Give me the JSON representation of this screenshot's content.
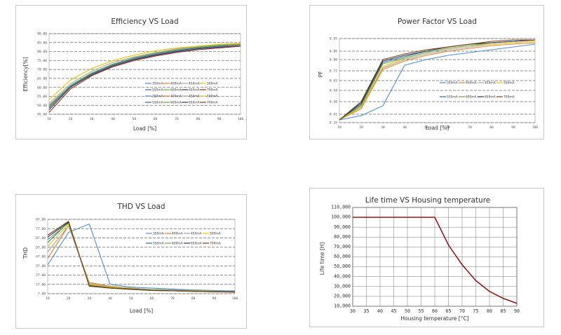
{
  "chart_data": [
    {
      "type": "line",
      "title": "Efficiency VS Load",
      "xlabel": "Load [%]",
      "ylabel": "Efficiency[%]",
      "xlim": [
        10,
        100
      ],
      "ylim": [
        45,
        90
      ],
      "x_ticks": [
        "10",
        "20",
        "30",
        "40",
        "50",
        "60",
        "70",
        "80",
        "90",
        "100"
      ],
      "y_ticks": [
        "45.00",
        "50.00",
        "55.00",
        "60.00",
        "65.00",
        "70.00",
        "75.00",
        "80.00",
        "85.00",
        "90.00"
      ],
      "grid": "dashed-horizontal",
      "x": [
        10,
        20,
        30,
        40,
        50,
        60,
        70,
        80,
        90,
        100
      ],
      "series": [
        {
          "name": "350mA",
          "color": "#4f8fd1",
          "values": [
            50,
            61,
            68,
            73,
            76.5,
            79,
            81,
            82.5,
            83.5,
            84
          ]
        },
        {
          "name": "400mA",
          "color": "#ef7d22",
          "values": [
            49.5,
            61,
            68,
            73,
            76.5,
            79,
            81,
            82.5,
            83.5,
            84
          ]
        },
        {
          "name": "450mA",
          "color": "#a5a5a5",
          "values": [
            51,
            62,
            69,
            74,
            77,
            79.5,
            81.5,
            83,
            84,
            84.5
          ]
        },
        {
          "name": "500mA",
          "color": "#f2c200",
          "values": [
            53,
            64,
            70.5,
            75,
            78,
            80.5,
            82,
            83,
            84,
            84.5
          ]
        },
        {
          "name": "550mA",
          "color": "#2e6ca7",
          "values": [
            48.5,
            60.5,
            67.5,
            72.5,
            76,
            78.5,
            80.5,
            82,
            83,
            83.5
          ]
        },
        {
          "name": "600mA",
          "color": "#6aaa3a",
          "values": [
            49,
            61,
            68,
            73,
            76.5,
            79,
            81,
            82.5,
            83.5,
            84
          ]
        },
        {
          "name": "650mA",
          "color": "#1f3864",
          "values": [
            47.5,
            60,
            67,
            72,
            75.5,
            78,
            80,
            81.5,
            82.5,
            83
          ]
        },
        {
          "name": "700mA",
          "color": "#a62a1a",
          "values": [
            46,
            59,
            66.5,
            71.5,
            75,
            77.5,
            79.5,
            81,
            82,
            83
          ]
        }
      ],
      "legend_rows": [
        [
          "350mA",
          "400mA",
          "450mA",
          "500mA"
        ],
        [
          "550mA",
          "600mA",
          "650mA",
          "700mA"
        ],
        [
          "350mA",
          "400mA",
          "450mA",
          "500mA"
        ],
        [
          "550mA",
          "600mA",
          "650mA",
          "700mA"
        ]
      ]
    },
    {
      "type": "line",
      "title": "Power Factor VS Load",
      "xlabel": "Load [%]",
      "ylabel": "PF",
      "xlim": [
        10,
        100
      ],
      "ylim": [
        0.35,
        0.95
      ],
      "x_ticks": [
        "10",
        "20",
        "30",
        "40",
        "50",
        "60",
        "70",
        "80",
        "90",
        "100"
      ],
      "y_ticks": [
        "0.35",
        "0.41",
        "0.50",
        "0.58",
        "0.65",
        "0.72",
        "0.80",
        "0.86",
        "0.95"
      ],
      "grid": "dashed-horizontal",
      "x": [
        10,
        20,
        30,
        40,
        50,
        60,
        70,
        80,
        90,
        100
      ],
      "series": [
        {
          "name": "350mA",
          "color": "#4f8fd1",
          "values": [
            0.37,
            0.4,
            0.47,
            0.76,
            0.8,
            0.83,
            0.85,
            0.87,
            0.89,
            0.91
          ]
        },
        {
          "name": "400mA",
          "color": "#ef7d22",
          "values": [
            0.37,
            0.45,
            0.73,
            0.79,
            0.83,
            0.86,
            0.88,
            0.9,
            0.91,
            0.92
          ]
        },
        {
          "name": "450mA",
          "color": "#a5a5a5",
          "values": [
            0.37,
            0.46,
            0.74,
            0.8,
            0.84,
            0.87,
            0.89,
            0.91,
            0.92,
            0.93
          ]
        },
        {
          "name": "500mA",
          "color": "#f2c200",
          "values": [
            0.37,
            0.46,
            0.75,
            0.81,
            0.85,
            0.88,
            0.9,
            0.91,
            0.92,
            0.93
          ]
        },
        {
          "name": "550mA",
          "color": "#2e6ca7",
          "values": [
            0.37,
            0.48,
            0.78,
            0.82,
            0.86,
            0.89,
            0.91,
            0.92,
            0.93,
            0.94
          ]
        },
        {
          "name": "600mA",
          "color": "#6aaa3a",
          "values": [
            0.37,
            0.47,
            0.77,
            0.81,
            0.85,
            0.88,
            0.9,
            0.92,
            0.93,
            0.94
          ]
        },
        {
          "name": "650mA",
          "color": "#1f3864",
          "values": [
            0.37,
            0.49,
            0.79,
            0.83,
            0.86,
            0.89,
            0.91,
            0.92,
            0.93,
            0.94
          ]
        },
        {
          "name": "700mA",
          "color": "#843c0c",
          "values": [
            0.37,
            0.5,
            0.8,
            0.84,
            0.87,
            0.89,
            0.91,
            0.93,
            0.94,
            0.94
          ]
        }
      ],
      "legend_rows": [
        [
          "350mA",
          "400mA",
          "450mA",
          "500mA"
        ],
        [
          "550mA",
          "600mA",
          "650mA",
          "700mA"
        ]
      ]
    },
    {
      "type": "line",
      "title": "THD VS Load",
      "xlabel": "Load [%]",
      "ylabel": "THD",
      "xlim": [
        10,
        100
      ],
      "ylim": [
        7,
        87
      ],
      "x_ticks": [
        "10",
        "20",
        "30",
        "40",
        "50",
        "60",
        "70",
        "80",
        "90",
        "100"
      ],
      "y_ticks": [
        "7.00",
        "17.00",
        "27.00",
        "37.00",
        "47.00",
        "57.00",
        "67.00",
        "77.00",
        "87.00"
      ],
      "grid": "dashed-horizontal",
      "x": [
        10,
        20,
        30,
        40,
        50,
        60,
        70,
        80,
        90,
        100
      ],
      "series": [
        {
          "name": "350mA",
          "color": "#4f8fd1",
          "values": [
            38,
            73,
            82,
            17,
            14,
            13,
            12,
            11,
            10.5,
            10
          ]
        },
        {
          "name": "400mA",
          "color": "#ef7d22",
          "values": [
            45,
            80,
            19,
            15,
            13,
            11.5,
            11,
            10.5,
            10,
            9.5
          ]
        },
        {
          "name": "450mA",
          "color": "#a5a5a5",
          "values": [
            52,
            80,
            18,
            14.5,
            13,
            11.5,
            11,
            10.5,
            10,
            9.5
          ]
        },
        {
          "name": "500mA",
          "color": "#f2c200",
          "values": [
            58,
            82,
            17,
            14,
            12.5,
            11,
            10.5,
            10,
            9.5,
            9
          ]
        },
        {
          "name": "550mA",
          "color": "#2e6ca7",
          "values": [
            62,
            84,
            16,
            13.5,
            12,
            11,
            10.5,
            10,
            9.5,
            9
          ]
        },
        {
          "name": "600mA",
          "color": "#6aaa3a",
          "values": [
            65,
            83,
            16,
            13.5,
            12,
            11,
            10.5,
            10,
            9.5,
            9
          ]
        },
        {
          "name": "650mA",
          "color": "#1f3864",
          "values": [
            68,
            84,
            15.5,
            13,
            12,
            10.5,
            10,
            9.5,
            9,
            9
          ]
        },
        {
          "name": "700mA",
          "color": "#843c0c",
          "values": [
            70,
            85,
            15,
            13,
            11.5,
            10.5,
            10,
            9.5,
            9,
            8.5
          ]
        }
      ],
      "legend_rows": [
        [
          "350mA",
          "400mA",
          "450mA",
          "500mA"
        ],
        [
          "550mA",
          "600mA",
          "650mA",
          "700mA"
        ]
      ]
    },
    {
      "type": "line",
      "title": "Life time VS Housing temperature",
      "xlabel": "Housing temperature [°C]",
      "ylabel": "Life time [H]",
      "xlim": [
        30,
        90
      ],
      "ylim": [
        10000,
        110000
      ],
      "x_ticks": [
        "30",
        "35",
        "40",
        "45",
        "50",
        "55",
        "60",
        "65",
        "70",
        "75",
        "80",
        "85",
        "90"
      ],
      "y_ticks": [
        "10,000",
        "20,000",
        "30,000",
        "40,000",
        "50,000",
        "60,000",
        "70,000",
        "80,000",
        "90,000",
        "100,000",
        "110,000"
      ],
      "grid": "solid-both",
      "x": [
        30,
        35,
        40,
        45,
        50,
        55,
        60,
        65,
        70,
        75,
        80,
        85,
        90
      ],
      "series": [
        {
          "name": "",
          "color": "#8b0000",
          "values": [
            100000,
            100000,
            100000,
            100000,
            100000,
            100000,
            100000,
            72000,
            52000,
            36000,
            25000,
            18000,
            13000
          ]
        }
      ]
    }
  ]
}
